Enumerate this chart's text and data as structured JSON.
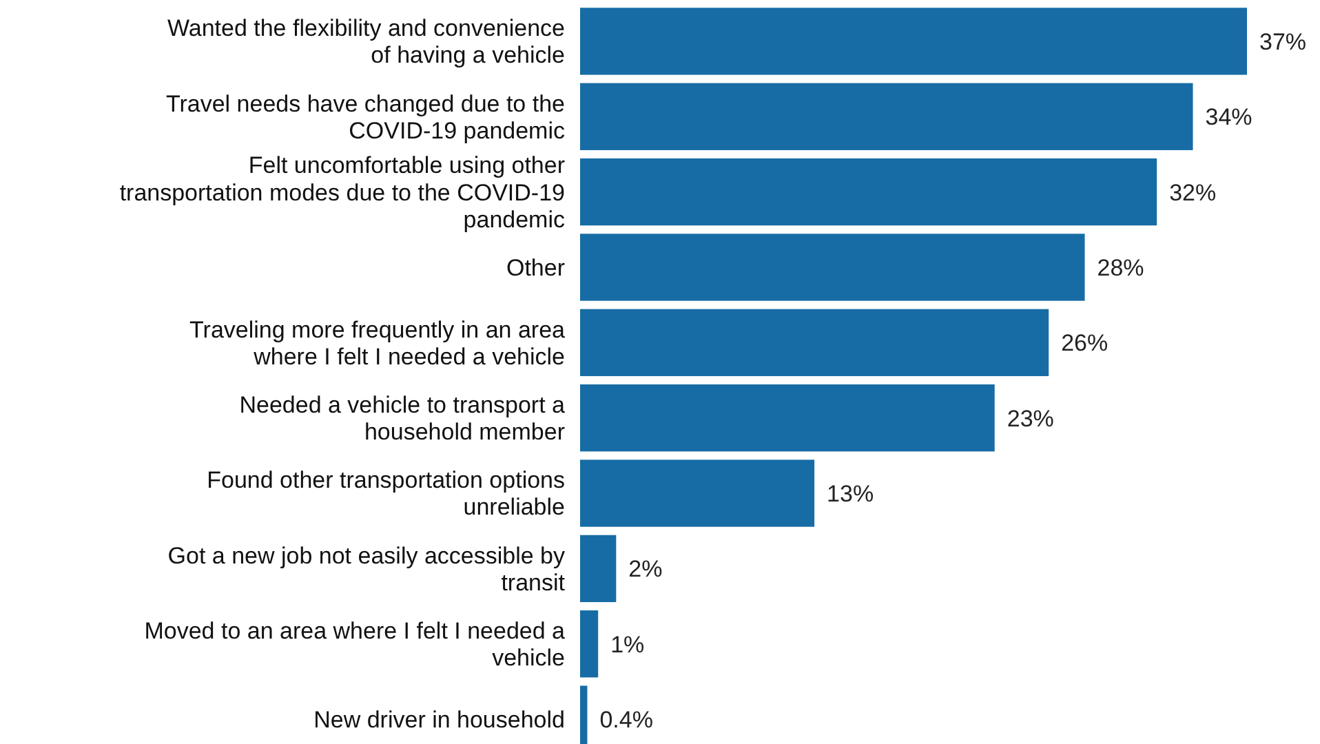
{
  "chart_data": {
    "type": "bar",
    "orientation": "horizontal",
    "categories": [
      "Wanted the flexibility and convenience of having a vehicle",
      "Travel needs have changed due to the COVID-19 pandemic",
      "Felt uncomfortable using other transportation modes due to the COVID-19 pandemic",
      "Other",
      "Traveling more frequently in an area where I felt I needed a vehicle",
      "Needed a vehicle to transport a household member",
      "Found other transportation options unreliable",
      "Got a new job not easily accessible by transit",
      "Moved to an area where I felt I needed a vehicle",
      "New driver in household"
    ],
    "values": [
      37,
      34,
      32,
      28,
      26,
      23,
      13,
      2,
      1,
      0.4
    ],
    "value_labels": [
      "37%",
      "34%",
      "32%",
      "28%",
      "26%",
      "23%",
      "13%",
      "2%",
      "1%",
      "0.4%"
    ],
    "color": "#176ca5"
  }
}
